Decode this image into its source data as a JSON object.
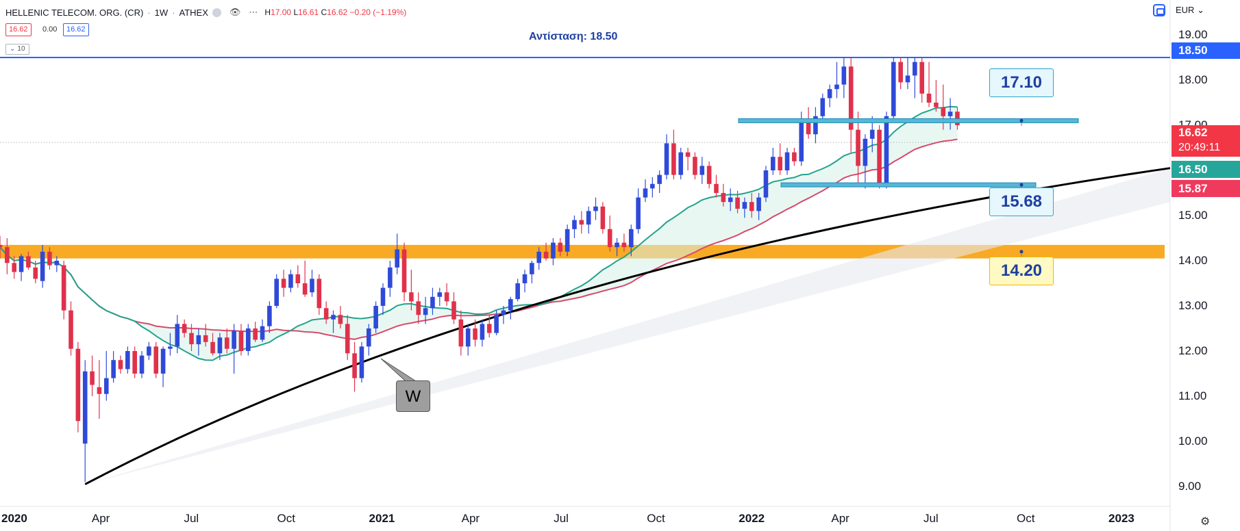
{
  "header": {
    "symbol": "HELLENIC TELECOM. ORG. (CR)",
    "interval": "1W",
    "exchange": "ATHEX",
    "ohlc": {
      "h_label": "H",
      "h": "17.00",
      "l_label": "L",
      "l": "16.61",
      "c_label": "C",
      "c": "16.62",
      "change": "−0.20 (−1.19%)"
    },
    "sell_price": "16.62",
    "spread": "0.00",
    "buy_price": "16.62",
    "indicator_count": "10",
    "currency": "EUR",
    "icons": [
      "eye-icon",
      "gear-icon",
      "more-icon"
    ]
  },
  "annotations": {
    "resistance_label": "Αντίσταση: 18.50",
    "callout_17": "17.10",
    "callout_15": "15.68",
    "callout_14": "14.20",
    "w_label": "W"
  },
  "price_axis": {
    "ticks": [
      "19.00",
      "18.00",
      "17.00",
      "16.00",
      "15.00",
      "14.00",
      "13.00",
      "12.00",
      "11.00",
      "10.00",
      "9.00"
    ],
    "tag_resistance": "18.50",
    "tag_last": "16.62",
    "tag_countdown": "20:49:11",
    "tag_ma_fast": "16.50",
    "tag_ma_slow": "15.87"
  },
  "time_axis": {
    "ticks": [
      "2020",
      "Apr",
      "Jul",
      "Oct",
      "2021",
      "Apr",
      "Jul",
      "Oct",
      "2022",
      "Apr",
      "Jul",
      "Oct",
      "2023"
    ]
  },
  "colors": {
    "up": "#2f4ad8",
    "down": "#e0314b",
    "ma_fast": "#22a38b",
    "ma_slow": "#d64a6a",
    "resistance": "#2962ff",
    "zone": "#f7a10c",
    "trendline": "#000000",
    "last_price": "#f23645",
    "ma_fast_tag": "#26a69a",
    "ma_slow_tag": "#ef3a5d"
  },
  "chart_data": {
    "type": "candlestick",
    "symbol": "HELLENIC TELECOM. ORG. (CR)",
    "interval": "1W",
    "currency": "EUR",
    "ylim": [
      8.3,
      19.2
    ],
    "xlim": [
      "2019-12-23",
      "2023-02-20"
    ],
    "candles": [
      {
        "date": "2019-12-23",
        "o": 14.35,
        "h": 14.55,
        "l": 14.05,
        "c": 14.3
      },
      {
        "date": "2019-12-30",
        "o": 14.3,
        "h": 14.5,
        "l": 13.7,
        "c": 13.95
      },
      {
        "date": "2020-01-06",
        "o": 13.95,
        "h": 14.1,
        "l": 13.6,
        "c": 13.75
      },
      {
        "date": "2020-01-13",
        "o": 13.75,
        "h": 14.15,
        "l": 13.55,
        "c": 14.1
      },
      {
        "date": "2020-01-20",
        "o": 14.1,
        "h": 14.2,
        "l": 13.8,
        "c": 13.85
      },
      {
        "date": "2020-01-27",
        "o": 13.85,
        "h": 14.0,
        "l": 13.5,
        "c": 13.6
      },
      {
        "date": "2020-02-03",
        "o": 13.55,
        "h": 14.35,
        "l": 13.4,
        "c": 14.2
      },
      {
        "date": "2020-02-10",
        "o": 14.2,
        "h": 14.3,
        "l": 13.8,
        "c": 13.9
      },
      {
        "date": "2020-02-17",
        "o": 13.9,
        "h": 14.1,
        "l": 13.75,
        "c": 14.0
      },
      {
        "date": "2020-02-24",
        "o": 13.9,
        "h": 14.0,
        "l": 12.7,
        "c": 12.9
      },
      {
        "date": "2020-03-02",
        "o": 12.9,
        "h": 13.1,
        "l": 11.9,
        "c": 12.05
      },
      {
        "date": "2020-03-09",
        "o": 12.05,
        "h": 12.2,
        "l": 10.2,
        "c": 10.45
      },
      {
        "date": "2020-03-16",
        "o": 9.95,
        "h": 11.8,
        "l": 9.1,
        "c": 11.55
      },
      {
        "date": "2020-03-23",
        "o": 11.55,
        "h": 11.9,
        "l": 11.0,
        "c": 11.25
      },
      {
        "date": "2020-03-30",
        "o": 11.2,
        "h": 11.8,
        "l": 10.5,
        "c": 11.05
      },
      {
        "date": "2020-04-06",
        "o": 11.05,
        "h": 12.0,
        "l": 10.9,
        "c": 11.4
      },
      {
        "date": "2020-04-13",
        "o": 11.4,
        "h": 12.0,
        "l": 11.3,
        "c": 11.8
      },
      {
        "date": "2020-04-20",
        "o": 11.8,
        "h": 11.9,
        "l": 11.5,
        "c": 11.6
      },
      {
        "date": "2020-04-27",
        "o": 11.6,
        "h": 12.1,
        "l": 11.5,
        "c": 12.0
      },
      {
        "date": "2020-05-04",
        "o": 12.0,
        "h": 12.1,
        "l": 11.4,
        "c": 11.5
      },
      {
        "date": "2020-05-11",
        "o": 11.5,
        "h": 12.0,
        "l": 11.4,
        "c": 11.9
      },
      {
        "date": "2020-05-18",
        "o": 11.9,
        "h": 12.2,
        "l": 11.8,
        "c": 12.1
      },
      {
        "date": "2020-05-25",
        "o": 12.1,
        "h": 12.2,
        "l": 11.4,
        "c": 11.5
      },
      {
        "date": "2020-06-01",
        "o": 11.5,
        "h": 12.1,
        "l": 11.2,
        "c": 12.05
      },
      {
        "date": "2020-06-08",
        "o": 12.05,
        "h": 12.4,
        "l": 11.9,
        "c": 12.1
      },
      {
        "date": "2020-06-15",
        "o": 12.1,
        "h": 12.8,
        "l": 11.95,
        "c": 12.6
      },
      {
        "date": "2020-06-22",
        "o": 12.6,
        "h": 12.7,
        "l": 12.3,
        "c": 12.4
      },
      {
        "date": "2020-06-29",
        "o": 12.4,
        "h": 12.6,
        "l": 12.0,
        "c": 12.15
      },
      {
        "date": "2020-07-06",
        "o": 12.15,
        "h": 12.5,
        "l": 11.9,
        "c": 12.35
      },
      {
        "date": "2020-07-13",
        "o": 12.35,
        "h": 12.6,
        "l": 12.1,
        "c": 12.2
      },
      {
        "date": "2020-07-20",
        "o": 12.2,
        "h": 12.4,
        "l": 11.9,
        "c": 11.95
      },
      {
        "date": "2020-07-27",
        "o": 11.95,
        "h": 12.4,
        "l": 11.8,
        "c": 12.3
      },
      {
        "date": "2020-08-03",
        "o": 12.3,
        "h": 12.5,
        "l": 11.95,
        "c": 12.05
      },
      {
        "date": "2020-08-10",
        "o": 12.05,
        "h": 12.6,
        "l": 11.5,
        "c": 12.45
      },
      {
        "date": "2020-08-17",
        "o": 12.45,
        "h": 12.6,
        "l": 11.9,
        "c": 12.0
      },
      {
        "date": "2020-08-24",
        "o": 12.0,
        "h": 12.6,
        "l": 11.9,
        "c": 12.5
      },
      {
        "date": "2020-08-31",
        "o": 12.5,
        "h": 12.65,
        "l": 12.2,
        "c": 12.25
      },
      {
        "date": "2020-09-07",
        "o": 12.25,
        "h": 12.7,
        "l": 12.2,
        "c": 12.55
      },
      {
        "date": "2020-09-14",
        "o": 12.55,
        "h": 13.1,
        "l": 12.4,
        "c": 13.0
      },
      {
        "date": "2020-09-21",
        "o": 13.0,
        "h": 13.7,
        "l": 12.95,
        "c": 13.6
      },
      {
        "date": "2020-09-28",
        "o": 13.6,
        "h": 13.8,
        "l": 13.2,
        "c": 13.4
      },
      {
        "date": "2020-10-05",
        "o": 13.4,
        "h": 13.8,
        "l": 13.3,
        "c": 13.7
      },
      {
        "date": "2020-10-12",
        "o": 13.7,
        "h": 13.9,
        "l": 13.4,
        "c": 13.5
      },
      {
        "date": "2020-10-19",
        "o": 13.5,
        "h": 14.0,
        "l": 13.2,
        "c": 13.25
      },
      {
        "date": "2020-10-26",
        "o": 13.3,
        "h": 13.8,
        "l": 13.2,
        "c": 13.6
      },
      {
        "date": "2020-11-02",
        "o": 13.6,
        "h": 13.7,
        "l": 12.8,
        "c": 12.95
      },
      {
        "date": "2020-11-09",
        "o": 12.95,
        "h": 13.1,
        "l": 12.6,
        "c": 12.7
      },
      {
        "date": "2020-11-16",
        "o": 12.7,
        "h": 12.9,
        "l": 12.4,
        "c": 12.8
      },
      {
        "date": "2020-11-23",
        "o": 12.8,
        "h": 13.0,
        "l": 12.5,
        "c": 12.6
      },
      {
        "date": "2020-11-30",
        "o": 12.6,
        "h": 12.8,
        "l": 11.8,
        "c": 11.95
      },
      {
        "date": "2020-12-07",
        "o": 11.95,
        "h": 12.2,
        "l": 11.1,
        "c": 11.4
      },
      {
        "date": "2020-12-14",
        "o": 11.4,
        "h": 12.2,
        "l": 11.3,
        "c": 12.1
      },
      {
        "date": "2020-12-21",
        "o": 12.1,
        "h": 12.6,
        "l": 11.9,
        "c": 12.5
      },
      {
        "date": "2020-12-28",
        "o": 12.5,
        "h": 13.1,
        "l": 12.4,
        "c": 13.0
      },
      {
        "date": "2021-01-04",
        "o": 13.0,
        "h": 13.5,
        "l": 12.8,
        "c": 13.4
      },
      {
        "date": "2021-01-11",
        "o": 13.4,
        "h": 14.0,
        "l": 13.2,
        "c": 13.85
      },
      {
        "date": "2021-01-18",
        "o": 13.85,
        "h": 14.6,
        "l": 13.7,
        "c": 14.25
      },
      {
        "date": "2021-01-25",
        "o": 14.25,
        "h": 14.4,
        "l": 13.1,
        "c": 13.3
      },
      {
        "date": "2021-02-01",
        "o": 13.3,
        "h": 13.8,
        "l": 12.9,
        "c": 13.1
      },
      {
        "date": "2021-02-08",
        "o": 13.1,
        "h": 13.3,
        "l": 12.6,
        "c": 12.8
      },
      {
        "date": "2021-02-15",
        "o": 12.8,
        "h": 13.2,
        "l": 12.6,
        "c": 12.95
      },
      {
        "date": "2021-02-22",
        "o": 12.95,
        "h": 13.4,
        "l": 12.8,
        "c": 13.2
      },
      {
        "date": "2021-03-01",
        "o": 13.2,
        "h": 13.4,
        "l": 13.0,
        "c": 13.3
      },
      {
        "date": "2021-03-08",
        "o": 13.3,
        "h": 13.5,
        "l": 13.0,
        "c": 13.1
      },
      {
        "date": "2021-03-15",
        "o": 13.1,
        "h": 13.3,
        "l": 12.6,
        "c": 12.7
      },
      {
        "date": "2021-03-22",
        "o": 12.7,
        "h": 12.9,
        "l": 11.9,
        "c": 12.1
      },
      {
        "date": "2021-03-29",
        "o": 12.1,
        "h": 12.6,
        "l": 11.9,
        "c": 12.5
      },
      {
        "date": "2021-04-05",
        "o": 12.5,
        "h": 12.7,
        "l": 12.1,
        "c": 12.25
      },
      {
        "date": "2021-04-12",
        "o": 12.25,
        "h": 12.7,
        "l": 12.1,
        "c": 12.6
      },
      {
        "date": "2021-04-19",
        "o": 12.6,
        "h": 12.8,
        "l": 12.3,
        "c": 12.4
      },
      {
        "date": "2021-04-26",
        "o": 12.4,
        "h": 12.9,
        "l": 12.35,
        "c": 12.8
      },
      {
        "date": "2021-05-03",
        "o": 12.8,
        "h": 13.0,
        "l": 12.6,
        "c": 12.9
      },
      {
        "date": "2021-05-10",
        "o": 12.9,
        "h": 13.2,
        "l": 12.7,
        "c": 13.15
      },
      {
        "date": "2021-05-17",
        "o": 13.15,
        "h": 13.6,
        "l": 13.1,
        "c": 13.5
      },
      {
        "date": "2021-05-24",
        "o": 13.5,
        "h": 13.8,
        "l": 13.3,
        "c": 13.7
      },
      {
        "date": "2021-05-31",
        "o": 13.7,
        "h": 14.0,
        "l": 13.5,
        "c": 13.95
      },
      {
        "date": "2021-06-07",
        "o": 13.95,
        "h": 14.3,
        "l": 13.8,
        "c": 14.2
      },
      {
        "date": "2021-06-14",
        "o": 14.2,
        "h": 14.4,
        "l": 14.0,
        "c": 14.05
      },
      {
        "date": "2021-06-21",
        "o": 14.05,
        "h": 14.5,
        "l": 13.9,
        "c": 14.4
      },
      {
        "date": "2021-06-28",
        "o": 14.4,
        "h": 14.5,
        "l": 14.1,
        "c": 14.2
      },
      {
        "date": "2021-07-05",
        "o": 14.2,
        "h": 14.8,
        "l": 14.1,
        "c": 14.7
      },
      {
        "date": "2021-07-12",
        "o": 14.7,
        "h": 15.0,
        "l": 14.5,
        "c": 14.9
      },
      {
        "date": "2021-07-19",
        "o": 14.9,
        "h": 15.1,
        "l": 14.6,
        "c": 14.8
      },
      {
        "date": "2021-07-26",
        "o": 14.8,
        "h": 15.2,
        "l": 14.6,
        "c": 15.1
      },
      {
        "date": "2021-08-02",
        "o": 15.1,
        "h": 15.4,
        "l": 14.9,
        "c": 15.2
      },
      {
        "date": "2021-08-09",
        "o": 15.2,
        "h": 15.3,
        "l": 14.6,
        "c": 14.7
      },
      {
        "date": "2021-08-16",
        "o": 14.7,
        "h": 15.0,
        "l": 14.2,
        "c": 14.3
      },
      {
        "date": "2021-08-23",
        "o": 14.3,
        "h": 14.5,
        "l": 14.1,
        "c": 14.4
      },
      {
        "date": "2021-08-30",
        "o": 14.4,
        "h": 14.6,
        "l": 14.2,
        "c": 14.3
      },
      {
        "date": "2021-09-06",
        "o": 14.3,
        "h": 14.8,
        "l": 14.1,
        "c": 14.7
      },
      {
        "date": "2021-09-13",
        "o": 14.7,
        "h": 15.6,
        "l": 14.6,
        "c": 15.4
      },
      {
        "date": "2021-09-20",
        "o": 15.4,
        "h": 15.8,
        "l": 15.3,
        "c": 15.6
      },
      {
        "date": "2021-09-27",
        "o": 15.6,
        "h": 15.85,
        "l": 15.4,
        "c": 15.7
      },
      {
        "date": "2021-10-04",
        "o": 15.7,
        "h": 16.0,
        "l": 15.5,
        "c": 15.9
      },
      {
        "date": "2021-10-11",
        "o": 15.9,
        "h": 16.8,
        "l": 15.8,
        "c": 16.6
      },
      {
        "date": "2021-10-18",
        "o": 16.6,
        "h": 16.9,
        "l": 15.8,
        "c": 15.9
      },
      {
        "date": "2021-10-25",
        "o": 15.9,
        "h": 16.5,
        "l": 15.8,
        "c": 16.4
      },
      {
        "date": "2021-11-01",
        "o": 16.4,
        "h": 16.5,
        "l": 16.0,
        "c": 16.3
      },
      {
        "date": "2021-11-08",
        "o": 16.3,
        "h": 16.4,
        "l": 15.8,
        "c": 15.9
      },
      {
        "date": "2021-11-15",
        "o": 15.9,
        "h": 16.3,
        "l": 15.7,
        "c": 16.1
      },
      {
        "date": "2021-11-22",
        "o": 16.1,
        "h": 16.2,
        "l": 15.6,
        "c": 15.7
      },
      {
        "date": "2021-11-29",
        "o": 15.7,
        "h": 15.9,
        "l": 15.4,
        "c": 15.5
      },
      {
        "date": "2021-12-06",
        "o": 15.5,
        "h": 15.7,
        "l": 15.2,
        "c": 15.3
      },
      {
        "date": "2021-12-13",
        "o": 15.3,
        "h": 15.6,
        "l": 15.1,
        "c": 15.4
      },
      {
        "date": "2021-12-20",
        "o": 15.4,
        "h": 15.55,
        "l": 15.05,
        "c": 15.15
      },
      {
        "date": "2021-12-27",
        "o": 15.15,
        "h": 15.4,
        "l": 14.95,
        "c": 15.3
      },
      {
        "date": "2022-01-03",
        "o": 15.3,
        "h": 15.5,
        "l": 14.95,
        "c": 15.1
      },
      {
        "date": "2022-01-10",
        "o": 15.1,
        "h": 15.5,
        "l": 14.9,
        "c": 15.4
      },
      {
        "date": "2022-01-17",
        "o": 15.4,
        "h": 16.1,
        "l": 15.3,
        "c": 16.0
      },
      {
        "date": "2022-01-24",
        "o": 16.0,
        "h": 16.5,
        "l": 15.9,
        "c": 16.3
      },
      {
        "date": "2022-01-31",
        "o": 16.3,
        "h": 16.6,
        "l": 15.9,
        "c": 16.0
      },
      {
        "date": "2022-02-07",
        "o": 16.0,
        "h": 16.5,
        "l": 15.9,
        "c": 16.4
      },
      {
        "date": "2022-02-14",
        "o": 16.4,
        "h": 16.5,
        "l": 16.1,
        "c": 16.2
      },
      {
        "date": "2022-02-21",
        "o": 16.2,
        "h": 17.3,
        "l": 16.1,
        "c": 17.1
      },
      {
        "date": "2022-02-28",
        "o": 17.1,
        "h": 17.4,
        "l": 16.7,
        "c": 16.8
      },
      {
        "date": "2022-03-07",
        "o": 16.8,
        "h": 17.4,
        "l": 16.6,
        "c": 17.2
      },
      {
        "date": "2022-03-14",
        "o": 17.2,
        "h": 17.7,
        "l": 17.1,
        "c": 17.6
      },
      {
        "date": "2022-03-21",
        "o": 17.6,
        "h": 17.9,
        "l": 17.4,
        "c": 17.8
      },
      {
        "date": "2022-03-28",
        "o": 17.8,
        "h": 18.4,
        "l": 17.6,
        "c": 17.9
      },
      {
        "date": "2022-04-04",
        "o": 17.9,
        "h": 18.5,
        "l": 17.6,
        "c": 18.3
      },
      {
        "date": "2022-04-11",
        "o": 18.3,
        "h": 18.5,
        "l": 16.4,
        "c": 16.9
      },
      {
        "date": "2022-04-18",
        "o": 16.9,
        "h": 17.3,
        "l": 15.7,
        "c": 16.1
      },
      {
        "date": "2022-04-25",
        "o": 16.1,
        "h": 16.8,
        "l": 15.6,
        "c": 16.7
      },
      {
        "date": "2022-05-02",
        "o": 16.7,
        "h": 17.2,
        "l": 16.4,
        "c": 16.9
      },
      {
        "date": "2022-05-09",
        "o": 16.9,
        "h": 17.0,
        "l": 15.6,
        "c": 15.7
      },
      {
        "date": "2022-05-16",
        "o": 15.7,
        "h": 17.3,
        "l": 15.6,
        "c": 17.2
      },
      {
        "date": "2022-05-23",
        "o": 17.2,
        "h": 18.5,
        "l": 17.1,
        "c": 18.4
      },
      {
        "date": "2022-05-30",
        "o": 18.4,
        "h": 18.5,
        "l": 17.8,
        "c": 17.95
      },
      {
        "date": "2022-06-06",
        "o": 17.95,
        "h": 18.5,
        "l": 17.8,
        "c": 18.1
      },
      {
        "date": "2022-06-13",
        "o": 18.1,
        "h": 18.5,
        "l": 17.6,
        "c": 18.4
      },
      {
        "date": "2022-06-20",
        "o": 18.4,
        "h": 18.5,
        "l": 17.5,
        "c": 17.7
      },
      {
        "date": "2022-06-27",
        "o": 17.7,
        "h": 18.4,
        "l": 17.4,
        "c": 17.5
      },
      {
        "date": "2022-07-04",
        "o": 17.5,
        "h": 18.0,
        "l": 17.3,
        "c": 17.4
      },
      {
        "date": "2022-07-11",
        "o": 17.4,
        "h": 17.9,
        "l": 16.9,
        "c": 17.2
      },
      {
        "date": "2022-07-18",
        "o": 17.2,
        "h": 17.6,
        "l": 16.9,
        "c": 17.3
      },
      {
        "date": "2022-07-25",
        "o": 17.3,
        "h": 17.4,
        "l": 16.9,
        "c": 17.0
      }
    ],
    "moving_averages": [
      {
        "color": "#22a38b",
        "last_value": 16.5
      },
      {
        "color": "#d64a6a",
        "last_value": 15.87
      }
    ],
    "levels": [
      {
        "label": "Αντίσταση: 18.50",
        "value": 18.5
      },
      {
        "value": 17.1
      },
      {
        "value": 15.68
      },
      {
        "value": 14.2
      }
    ],
    "last_price": 16.62,
    "annotation": "W"
  }
}
